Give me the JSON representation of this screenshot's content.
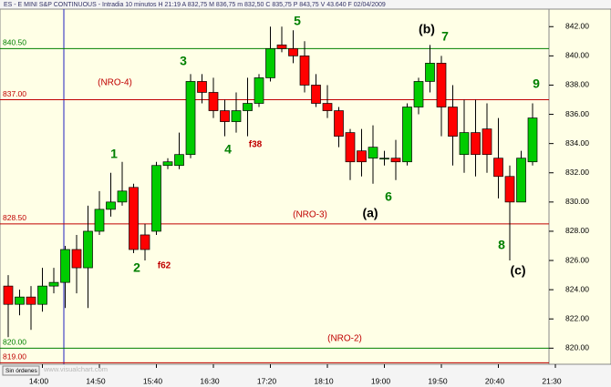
{
  "chart_data": {
    "type": "candlestick",
    "title": "ES - E MINI S&P CONTINUOUS - Intradia 10 minutos  H 21:19  A 832,75  M 836,75  m 832,50  C 835,75  P 843,75  V 43.640  F 02/04/2009",
    "categories": [
      null,
      null,
      null,
      "14:00",
      null,
      null,
      null,
      null,
      "14:50",
      null,
      null,
      null,
      null,
      "15:40",
      null,
      null,
      null,
      null,
      "16:30",
      null,
      null,
      null,
      null,
      "17:20",
      null,
      null,
      null,
      null,
      "18:10",
      null,
      null,
      null,
      null,
      "19:00",
      null,
      null,
      null,
      null,
      "19:50",
      null,
      null,
      null,
      null,
      "20:40",
      null,
      null,
      null,
      null,
      "21:30"
    ],
    "open": [
      824.25,
      823.0,
      823.5,
      823.0,
      824.25,
      824.5,
      826.75,
      825.5,
      828.0,
      829.5,
      830.0,
      831.0,
      827.75,
      828.0,
      832.5,
      832.5,
      833.25,
      838.25,
      837.5,
      836.25,
      835.5,
      836.25,
      836.75,
      838.5,
      840.75,
      840.5,
      840.0,
      838.0,
      836.75,
      836.25,
      834.75,
      833.5,
      833.0,
      833.0,
      833.0,
      832.75,
      836.5,
      838.25,
      839.5,
      836.5,
      833.25,
      834.75,
      835.0,
      833.0,
      831.75,
      830.0,
      832.75,
      null,
      null
    ],
    "high": [
      825.0,
      824.0,
      824.25,
      825.5,
      825.5,
      827.0,
      827.75,
      829.75,
      830.75,
      832.0,
      832.75,
      831.25,
      828.5,
      832.75,
      833.0,
      834.75,
      838.75,
      838.75,
      838.5,
      837.0,
      837.5,
      838.5,
      838.75,
      842.0,
      842.0,
      841.75,
      841.0,
      838.75,
      838.0,
      836.5,
      835.0,
      835.0,
      835.25,
      833.5,
      834.25,
      836.75,
      838.5,
      840.75,
      840.0,
      838.0,
      837.0,
      837.0,
      836.75,
      835.75,
      832.5,
      833.5,
      836.75,
      null,
      null
    ],
    "low": [
      820.75,
      822.25,
      821.25,
      822.5,
      823.75,
      822.75,
      823.75,
      822.75,
      827.75,
      829.0,
      829.75,
      826.5,
      826.0,
      827.75,
      832.25,
      832.25,
      833.0,
      836.75,
      835.75,
      834.5,
      834.75,
      834.5,
      836.5,
      838.25,
      840.25,
      839.5,
      837.5,
      836.5,
      835.75,
      833.75,
      831.5,
      831.75,
      831.25,
      832.5,
      831.5,
      832.5,
      836.0,
      837.5,
      834.5,
      832.5,
      832.0,
      831.75,
      832.0,
      830.25,
      826.0,
      830.0,
      832.5,
      null,
      null
    ],
    "close": [
      823.0,
      823.5,
      823.0,
      824.25,
      824.5,
      826.75,
      825.5,
      828.0,
      829.5,
      830.0,
      830.75,
      826.75,
      826.75,
      832.5,
      832.75,
      833.25,
      838.25,
      837.5,
      836.25,
      835.5,
      836.25,
      836.75,
      838.5,
      840.5,
      840.5,
      840.0,
      838.0,
      836.75,
      836.25,
      834.5,
      832.75,
      832.75,
      833.75,
      833.0,
      832.75,
      836.5,
      838.25,
      839.5,
      836.5,
      834.5,
      834.75,
      833.25,
      833.25,
      831.75,
      830.0,
      833.0,
      835.75,
      null,
      null
    ],
    "up_color": "#00cc00",
    "down_color": "#ff0000",
    "ylim": [
      818.9,
      843.2
    ],
    "yticks": [
      {
        "value": 820,
        "label": "820.00"
      },
      {
        "value": 822,
        "label": "822.00"
      },
      {
        "value": 824,
        "label": "824.00"
      },
      {
        "value": 826,
        "label": "826.00"
      },
      {
        "value": 828,
        "label": "828.00"
      },
      {
        "value": 830,
        "label": "830.00"
      },
      {
        "value": 832,
        "label": "832.00"
      },
      {
        "value": 834,
        "label": "834.00"
      },
      {
        "value": 836,
        "label": "836.00"
      },
      {
        "value": 838,
        "label": "838.00"
      },
      {
        "value": 840,
        "label": "840.00"
      },
      {
        "value": 842,
        "label": "842.00"
      }
    ],
    "levels": [
      {
        "value": 840.5,
        "label": "840.50",
        "color": "#008000"
      },
      {
        "value": 837,
        "label": "837.00",
        "color": "#c00000"
      },
      {
        "value": 828.5,
        "label": "828.50",
        "color": "#c00000"
      },
      {
        "value": 820,
        "label": "820.00",
        "color": "#008000"
      },
      {
        "value": 819,
        "label": "819.00",
        "color": "#c00000"
      }
    ],
    "annotations": [
      {
        "text": "(NRO-4)",
        "color": "#c00000"
      },
      {
        "text": "(NRO-3)",
        "color": "#c00000"
      },
      {
        "text": "(NRO-2)",
        "color": "#c00000"
      },
      {
        "text": "1",
        "color": "#008000"
      },
      {
        "text": "2",
        "color": "#008000"
      },
      {
        "text": "3",
        "color": "#008000"
      },
      {
        "text": "4",
        "color": "#008000"
      },
      {
        "text": "5",
        "color": "#008000"
      },
      {
        "text": "6",
        "color": "#008000"
      },
      {
        "text": "7",
        "color": "#008000"
      },
      {
        "text": "8",
        "color": "#008000"
      },
      {
        "text": "9",
        "color": "#008000"
      },
      {
        "text": "f38",
        "color": "#c00000"
      },
      {
        "text": "f62",
        "color": "#c00000"
      },
      {
        "text": "(a)",
        "color": "#000000"
      },
      {
        "text": "(b)",
        "color": "#000000"
      },
      {
        "text": "(c)",
        "color": "#000000"
      }
    ]
  },
  "ui": {
    "button": "Sin órdenes",
    "watermark": "www.visualchart.com"
  }
}
